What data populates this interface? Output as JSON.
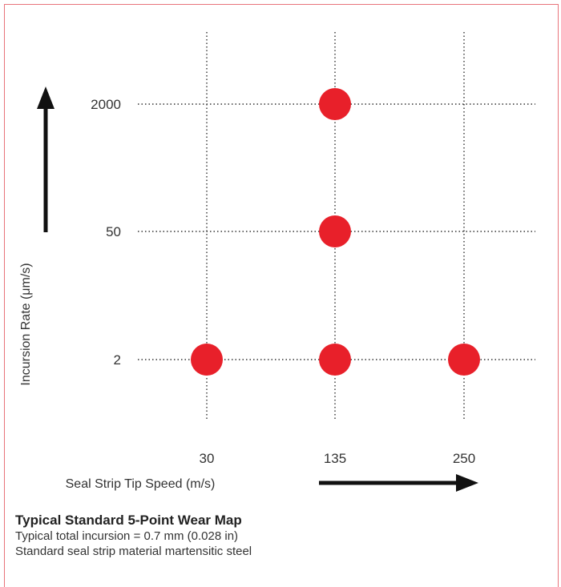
{
  "chart_data": {
    "type": "scatter",
    "title": "",
    "xlabel": "Seal Strip Tip Speed (m/s)",
    "ylabel": "Incursion Rate (μm/s)",
    "x_categories": [
      "30",
      "135",
      "250"
    ],
    "y_categories": [
      "2",
      "50",
      "2000"
    ],
    "points": [
      {
        "x": "135",
        "y": "2000"
      },
      {
        "x": "135",
        "y": "50"
      },
      {
        "x": "30",
        "y": "2"
      },
      {
        "x": "135",
        "y": "2"
      },
      {
        "x": "250",
        "y": "2"
      }
    ],
    "grid": true,
    "grid_style": "dotted",
    "point_color": "#e8202a",
    "arrow_color": "#111111"
  },
  "caption": {
    "title": "Typical Standard 5-Point Wear Map",
    "line1": "Typical total incursion = 0.7 mm (0.028 in)",
    "line2": "Standard seal strip material martensitic steel"
  }
}
